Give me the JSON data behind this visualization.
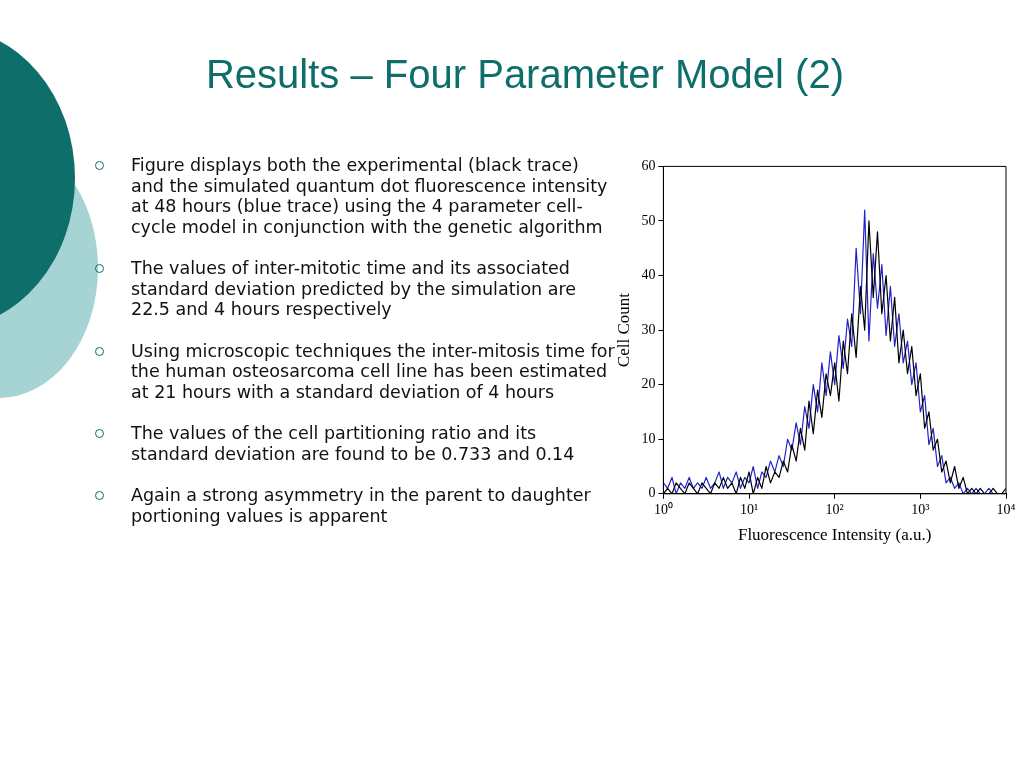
{
  "chart_data": {
    "type": "line",
    "title": "Results – Four Parameter Model (2)",
    "xlabel": "Fluorescence Intensity (a.u.)",
    "ylabel": "Cell Count",
    "x": [
      1,
      1.12,
      1.26,
      1.41,
      1.58,
      1.78,
      2,
      2.24,
      2.51,
      2.82,
      3.16,
      3.55,
      3.98,
      4.47,
      5.01,
      5.62,
      6.31,
      7.08,
      7.94,
      8.91,
      10,
      11.2,
      12.6,
      14.1,
      15.8,
      17.8,
      20,
      22.4,
      25.1,
      28.2,
      31.6,
      35.5,
      39.8,
      44.7,
      50.1,
      56.2,
      63.1,
      70.8,
      79.4,
      89.1,
      100,
      112,
      126,
      141,
      158,
      178,
      200,
      224,
      251,
      282,
      316,
      355,
      398,
      447,
      501,
      562,
      631,
      708,
      794,
      891,
      1000,
      1122,
      1259,
      1413,
      1585,
      1778,
      1995,
      2239,
      2512,
      2818,
      3162,
      3548,
      3981,
      4467,
      5012,
      5623,
      6310,
      7079,
      7943,
      8913,
      10000
    ],
    "series": [
      {
        "color": "#000000",
        "values": [
          0,
          1,
          0,
          2,
          1,
          0,
          2,
          1,
          0,
          2,
          1,
          0,
          2,
          1,
          3,
          1,
          2,
          0,
          3,
          1,
          4,
          0,
          3,
          1,
          5,
          2,
          4,
          3,
          6,
          4,
          9,
          6,
          12,
          8,
          17,
          11,
          19,
          14,
          22,
          18,
          24,
          17,
          28,
          22,
          33,
          25,
          38,
          30,
          50,
          36,
          48,
          33,
          40,
          28,
          36,
          24,
          30,
          22,
          27,
          18,
          22,
          12,
          15,
          8,
          10,
          4,
          6,
          2,
          5,
          1,
          3,
          0,
          1,
          0,
          1,
          0,
          0,
          1,
          0,
          0,
          1
        ]
      },
      {
        "color": "#2222cc",
        "values": [
          2,
          1,
          3,
          0,
          2,
          1,
          3,
          1,
          2,
          1,
          3,
          1,
          2,
          4,
          1,
          3,
          2,
          4,
          1,
          3,
          2,
          5,
          1,
          4,
          3,
          6,
          4,
          7,
          5,
          10,
          8,
          13,
          9,
          16,
          12,
          20,
          15,
          24,
          18,
          26,
          20,
          29,
          23,
          32,
          27,
          45,
          33,
          52,
          28,
          44,
          34,
          42,
          29,
          38,
          27,
          33,
          24,
          28,
          20,
          24,
          15,
          18,
          9,
          12,
          5,
          7,
          2,
          3,
          1,
          2,
          0,
          1,
          0,
          1,
          0,
          0,
          1,
          0,
          0,
          null,
          null
        ]
      }
    ],
    "xlim": [
      1,
      10000
    ],
    "xticks": [
      {
        "value": 1,
        "label": "10⁰"
      },
      {
        "value": 10,
        "label": "10¹"
      },
      {
        "value": 100,
        "label": "10²"
      },
      {
        "value": 1000,
        "label": "10³"
      },
      {
        "value": 10000,
        "label": "10⁴"
      }
    ],
    "ylim": [
      0,
      60
    ],
    "yticks": [
      0,
      10,
      20,
      30,
      40,
      50,
      60
    ],
    "log": "x",
    "grid": false,
    "legend": false,
    "marker": "none",
    "line_style": "solid",
    "annotations": [
      "Figure displays both the experimental (black trace) and the simulated quantum dot fluorescence intensity at 48 hours (blue trace) using the 4 parameter cell-cycle model in conjunction with the genetic algorithm",
      "The values of inter-mitotic time and its associated standard deviation predicted by the simulation are 22.5 and 4 hours respectively",
      "Using microscopic techniques the inter-mitosis time for the human osteosarcoma cell line has been estimated at 21 hours with a standard deviation of 4 hours",
      "The values of the cell partitioning ratio and its standard deviation are found to be 0.733 and 0.14",
      "Again a strong asymmetry in the parent to daughter portioning values is apparent"
    ]
  }
}
